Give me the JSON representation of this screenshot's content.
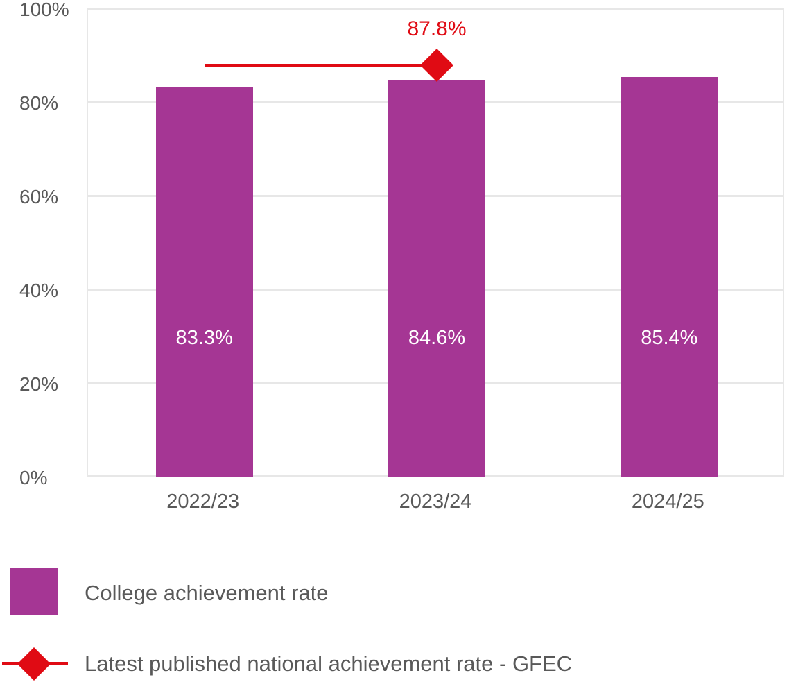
{
  "chart_data": {
    "type": "bar",
    "title": "",
    "categories": [
      "2022/23",
      "2023/24",
      "2024/25"
    ],
    "series": [
      {
        "name": "College achievement rate",
        "type": "bar",
        "values": [
          83.3,
          84.6,
          85.4
        ],
        "data_labels": [
          "83.3%",
          "84.6%",
          "85.4%"
        ],
        "color": "#A53694"
      },
      {
        "name": "Latest published national achievement rate - GFEC",
        "type": "line",
        "marker": "diamond",
        "values": [
          87.8,
          87.8,
          null
        ],
        "data_label": "87.8%",
        "data_label_at": "2023/24",
        "color": "#E00B14"
      }
    ],
    "ylim": [
      0,
      100
    ],
    "yticks": [
      "0%",
      "20%",
      "40%",
      "60%",
      "80%",
      "100%"
    ],
    "grid": true,
    "legend_position": "bottom"
  },
  "legend": {
    "items": [
      {
        "label": "College achievement rate",
        "swatch": "square",
        "color": "#A53694"
      },
      {
        "label": "Latest published national achievement rate - GFEC",
        "swatch": "line-diamond",
        "color": "#E00B14"
      }
    ]
  },
  "colors": {
    "bar": "#A53694",
    "national": "#E00B14",
    "axis_text": "#595959",
    "gridline": "#E7E7E7"
  }
}
